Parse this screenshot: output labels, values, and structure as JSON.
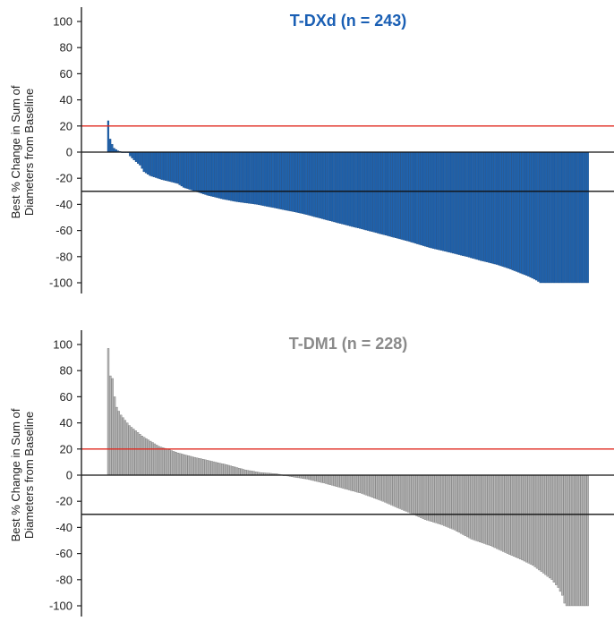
{
  "chart_data": [
    {
      "type": "bar",
      "title": "T-DXd (n = 243)",
      "title_color": "#1a5fb4",
      "bar_color": "#1e63b0",
      "bar_stroke": "#0d3f7a",
      "n": 243,
      "ylabel": [
        "Best % Change in Sum of",
        "Diameters from Baseline"
      ],
      "ylim": [
        -100,
        100
      ],
      "yticks": [
        100,
        80,
        60,
        40,
        20,
        0,
        -20,
        -40,
        -60,
        -80,
        -100
      ],
      "ytick_labels": [
        "100",
        "80",
        "60",
        "40",
        "20",
        "0",
        "-20",
        "-40",
        "-60",
        "-80",
        "-100"
      ],
      "reference_lines": [
        {
          "value": 20,
          "color": "#e0291f"
        },
        {
          "value": 0,
          "color": "#111111"
        },
        {
          "value": -30,
          "color": "#111111"
        }
      ],
      "profile": [
        [
          0,
          24
        ],
        [
          1,
          10
        ],
        [
          2,
          6
        ],
        [
          3,
          3
        ],
        [
          4,
          2
        ],
        [
          5,
          1
        ],
        [
          7,
          0
        ],
        [
          10,
          0
        ],
        [
          11,
          -3
        ],
        [
          13,
          -6
        ],
        [
          16,
          -10
        ],
        [
          18,
          -15
        ],
        [
          21,
          -18
        ],
        [
          27,
          -21
        ],
        [
          35,
          -24
        ],
        [
          38,
          -27
        ],
        [
          44,
          -30
        ],
        [
          50,
          -33
        ],
        [
          58,
          -36
        ],
        [
          65,
          -38
        ],
        [
          75,
          -40
        ],
        [
          85,
          -43
        ],
        [
          98,
          -47
        ],
        [
          108,
          -51
        ],
        [
          118,
          -55
        ],
        [
          131,
          -60
        ],
        [
          141,
          -64
        ],
        [
          151,
          -68
        ],
        [
          162,
          -73
        ],
        [
          173,
          -77
        ],
        [
          181,
          -80
        ],
        [
          188,
          -83
        ],
        [
          196,
          -86
        ],
        [
          202,
          -89
        ],
        [
          207,
          -92
        ],
        [
          212,
          -95
        ],
        [
          216,
          -98
        ],
        [
          218,
          -100
        ],
        [
          242,
          -100
        ]
      ]
    },
    {
      "type": "bar",
      "title": "T-DM1 (n = 228)",
      "title_color": "#8a8a8a",
      "bar_color": "#b5b5b5",
      "bar_stroke": "#6e6e6e",
      "n": 228,
      "ylabel": [
        "Best % Change in Sum of",
        "Diameters from Baseline"
      ],
      "ylim": [
        -100,
        100
      ],
      "yticks": [
        100,
        80,
        60,
        40,
        20,
        0,
        -20,
        -40,
        -60,
        -80,
        -100
      ],
      "ytick_labels": [
        "100",
        "80",
        "60",
        "40",
        "20",
        "0",
        "-20",
        "-40",
        "-60",
        "-80",
        "-100"
      ],
      "reference_lines": [
        {
          "value": 20,
          "color": "#e0291f"
        },
        {
          "value": 0,
          "color": "#111111"
        },
        {
          "value": -30,
          "color": "#111111"
        }
      ],
      "profile": [
        [
          0,
          97
        ],
        [
          1,
          76
        ],
        [
          2,
          74
        ],
        [
          3,
          60
        ],
        [
          4,
          52
        ],
        [
          6,
          46
        ],
        [
          8,
          42
        ],
        [
          10,
          38
        ],
        [
          13,
          34
        ],
        [
          16,
          30
        ],
        [
          20,
          26
        ],
        [
          24,
          22
        ],
        [
          28,
          20
        ],
        [
          33,
          17
        ],
        [
          40,
          14
        ],
        [
          48,
          11
        ],
        [
          56,
          8
        ],
        [
          65,
          4
        ],
        [
          72,
          2
        ],
        [
          80,
          1
        ],
        [
          86,
          -1
        ],
        [
          94,
          -3
        ],
        [
          102,
          -6
        ],
        [
          111,
          -10
        ],
        [
          120,
          -14
        ],
        [
          130,
          -20
        ],
        [
          137,
          -25
        ],
        [
          143,
          -29
        ],
        [
          150,
          -34
        ],
        [
          158,
          -38
        ],
        [
          164,
          -42
        ],
        [
          172,
          -49
        ],
        [
          181,
          -54
        ],
        [
          189,
          -60
        ],
        [
          196,
          -65
        ],
        [
          201,
          -69
        ],
        [
          206,
          -75
        ],
        [
          210,
          -80
        ],
        [
          213,
          -86
        ],
        [
          215,
          -92
        ],
        [
          216,
          -98
        ],
        [
          217,
          -100
        ],
        [
          227,
          -100
        ]
      ]
    }
  ]
}
